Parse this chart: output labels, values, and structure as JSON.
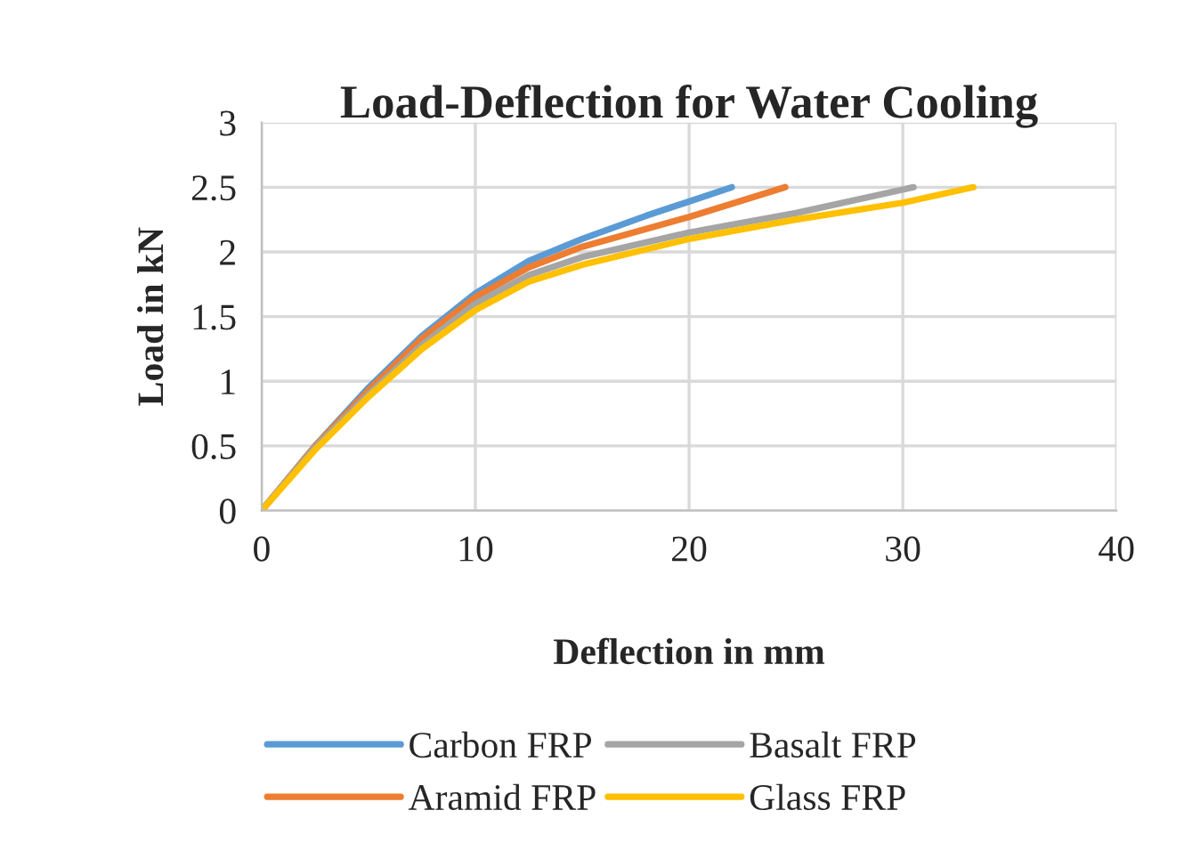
{
  "chart_data": {
    "type": "line",
    "title": "Load-Deflection for Water Cooling",
    "xlabel": "Deflection in mm",
    "ylabel": "Load in kN",
    "xlim": [
      0,
      40
    ],
    "xticks": [
      0,
      10,
      20,
      30,
      40
    ],
    "ylim": [
      0,
      3
    ],
    "yticks": [
      0,
      0.5,
      1,
      1.5,
      2,
      2.5,
      3
    ],
    "grid": true,
    "legend": "bottom",
    "marker": "none",
    "line_style": "solid",
    "series": [
      {
        "name": "Carbon FRP",
        "color": "#5b9bd5",
        "x": [
          0,
          2.5,
          5,
          7.5,
          10,
          12.5,
          15,
          18,
          22
        ],
        "values": [
          0,
          0.5,
          0.95,
          1.35,
          1.68,
          1.93,
          2.1,
          2.28,
          2.5
        ]
      },
      {
        "name": "Aramid FRP",
        "color": "#ed7d31",
        "x": [
          0,
          2.5,
          5,
          7.5,
          10,
          12.5,
          15,
          20,
          24.5
        ],
        "values": [
          0,
          0.5,
          0.93,
          1.33,
          1.65,
          1.88,
          2.04,
          2.27,
          2.5
        ]
      },
      {
        "name": "Basalt FRP",
        "color": "#a5a5a5",
        "x": [
          0,
          2.5,
          5,
          7.5,
          10,
          12.5,
          15,
          20,
          25,
          30.5
        ],
        "values": [
          0,
          0.49,
          0.9,
          1.28,
          1.6,
          1.82,
          1.96,
          2.15,
          2.3,
          2.5
        ]
      },
      {
        "name": "Glass FRP",
        "color": "#ffc000",
        "x": [
          0,
          2.5,
          5,
          7.5,
          10,
          12.5,
          15,
          20,
          25,
          30,
          33.3
        ],
        "values": [
          0,
          0.47,
          0.88,
          1.25,
          1.55,
          1.77,
          1.9,
          2.1,
          2.25,
          2.38,
          2.5
        ]
      }
    ]
  }
}
